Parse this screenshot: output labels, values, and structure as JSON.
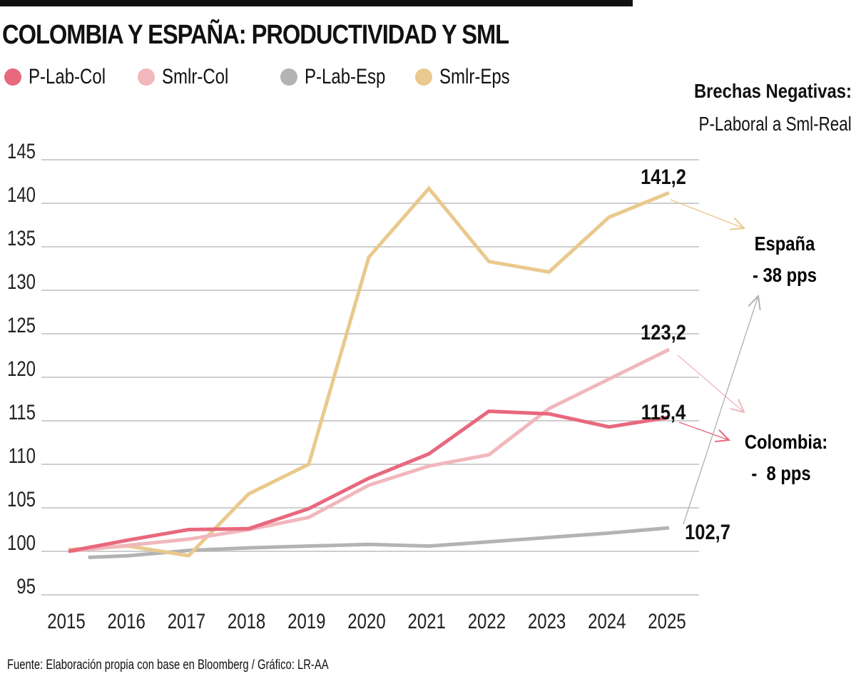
{
  "title": "COLOMBIA Y ESPAÑA: PRODUCTIVIDAD Y SML",
  "legend": [
    {
      "label": "P-Lab-Col",
      "color": "#e8687d"
    },
    {
      "label": "Smlr-Col",
      "color": "#f1b7bd"
    },
    {
      "label": "P-Lab-Esp",
      "color": "#b3b3b3"
    },
    {
      "label": "Smlr-Eps",
      "color": "#e9c98d"
    }
  ],
  "annotation_header": {
    "title": "Brechas Negativas:",
    "subtitle": "P-Laboral a Sml-Real"
  },
  "annotations": {
    "spain": {
      "line1": "España",
      "line2": "- 38 pps"
    },
    "colombia": {
      "line1": "Colombia:",
      "line2": "-  8 pps"
    }
  },
  "source": "Fuente: Elaboración propia con base en Bloomberg / Gráfico: LR-AA",
  "chart_data": {
    "type": "line",
    "title": "COLOMBIA Y ESPAÑA: PRODUCTIVIDAD Y SML",
    "xlabel": "",
    "ylabel": "",
    "x": [
      "2015",
      "2016",
      "2017",
      "2018",
      "2019",
      "2020",
      "2021",
      "2022",
      "2023",
      "2024",
      "2025"
    ],
    "yticks": [
      95,
      100,
      105,
      110,
      115,
      120,
      125,
      130,
      135,
      140,
      145
    ],
    "ylim": [
      95,
      145
    ],
    "grid": true,
    "legend_position": "top-left",
    "series": [
      {
        "name": "P-Lab-Col",
        "color": "#e8687d",
        "values": [
          100.0,
          101.3,
          102.5,
          102.6,
          104.9,
          108.4,
          111.2,
          116.1,
          115.8,
          114.3,
          115.4
        ],
        "end_label": "115,4"
      },
      {
        "name": "Smlr-Col",
        "color": "#f1b7bd",
        "values": [
          100.0,
          100.7,
          101.4,
          102.5,
          103.9,
          107.6,
          109.8,
          111.1,
          116.4,
          119.8,
          123.2
        ],
        "end_label": "123,2"
      },
      {
        "name": "P-Lab-Esp",
        "color": "#b3b3b3",
        "values": [
          null,
          99.5,
          100.1,
          100.4,
          100.6,
          100.8,
          100.6,
          101.1,
          101.6,
          102.1,
          102.7
        ],
        "start_offset": 0.33,
        "start_value": 99.3,
        "end_label": "102,7"
      },
      {
        "name": "Smlr-Eps",
        "color": "#e9c98d",
        "values": [
          100.2,
          100.6,
          99.5,
          106.6,
          110.0,
          133.8,
          141.7,
          133.3,
          132.1,
          138.4,
          141.2
        ],
        "end_label": "141,2"
      }
    ]
  }
}
